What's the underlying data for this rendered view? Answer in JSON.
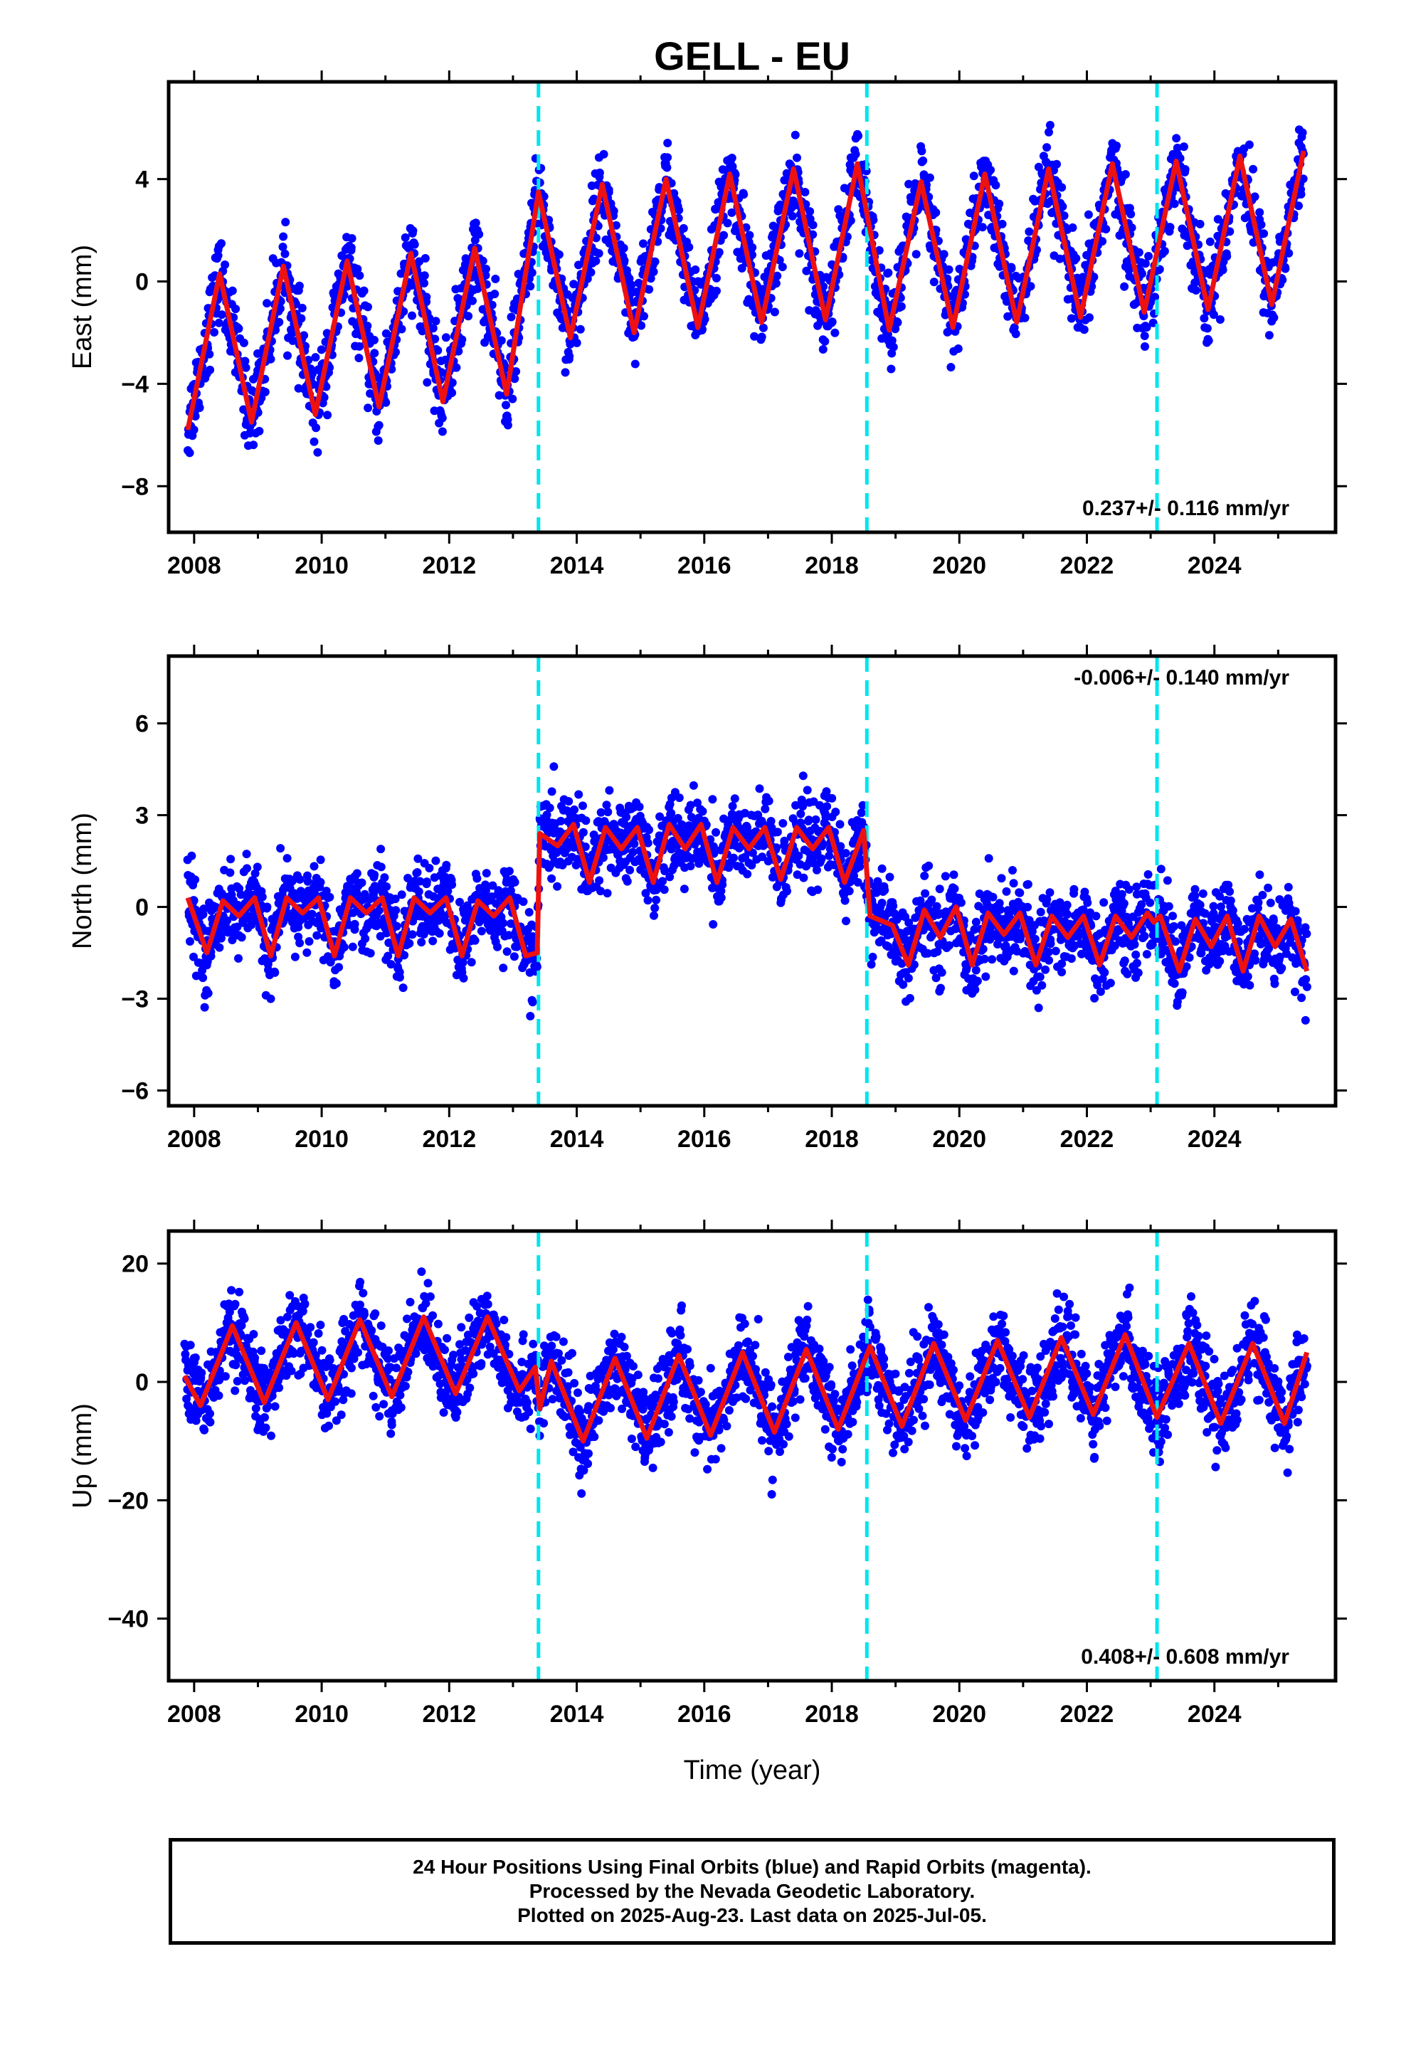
{
  "figure": {
    "title": "GELL - EU",
    "xlabel": "Time (year)",
    "x_ticks": [
      2008,
      2010,
      2012,
      2014,
      2016,
      2018,
      2020,
      2022,
      2024
    ],
    "xlim": [
      2007.6,
      2025.9
    ],
    "breaks": [
      2013.4,
      2018.55,
      2023.1
    ],
    "colors": {
      "data": "#0000ff",
      "model": "#ee1111",
      "break": "#00e5ee"
    }
  },
  "chart_data": [
    {
      "type": "scatter",
      "component": "east",
      "ylabel": "East (mm)",
      "ylim": [
        -9.8,
        7.8
      ],
      "y_ticks": [
        -8,
        -4,
        0,
        4
      ],
      "rate_label": "0.237+/- 0.116 mm/yr",
      "rate_position": "bottom-right",
      "series": [
        {
          "name": "24 Hour Positions (Final Orbits)",
          "x": [
            2007.9,
            2008.4,
            2008.9,
            2009.4,
            2009.9,
            2010.4,
            2010.9,
            2011.4,
            2011.9,
            2012.4,
            2012.9,
            2013.4,
            2013.9,
            2014.4,
            2014.9,
            2015.4,
            2015.9,
            2016.4,
            2016.9,
            2017.4,
            2017.9,
            2018.4,
            2018.9,
            2019.4,
            2019.9,
            2020.4,
            2020.9,
            2021.4,
            2021.9,
            2022.4,
            2022.9,
            2023.4,
            2023.9,
            2024.4,
            2024.9,
            2025.4
          ],
          "values": [
            -5.8,
            0.3,
            -5.5,
            0.6,
            -5.2,
            0.8,
            -4.9,
            1.1,
            -4.7,
            1.3,
            -4.4,
            3.5,
            -2.2,
            3.8,
            -2.0,
            4.0,
            -1.8,
            4.2,
            -1.6,
            4.4,
            -1.5,
            4.6,
            -1.9,
            3.9,
            -1.8,
            4.2,
            -1.6,
            4.4,
            -1.4,
            4.6,
            -1.2,
            4.7,
            -1.1,
            4.9,
            -0.9,
            5.1
          ]
        },
        {
          "name": "Model",
          "x": [
            2007.9,
            2008.4,
            2008.9,
            2009.4,
            2009.9,
            2010.4,
            2010.9,
            2011.4,
            2011.9,
            2012.4,
            2012.9,
            2013.4,
            2013.9,
            2014.4,
            2014.9,
            2015.4,
            2015.9,
            2016.4,
            2016.9,
            2017.4,
            2017.9,
            2018.4,
            2018.9,
            2019.4,
            2019.9,
            2020.4,
            2020.9,
            2021.4,
            2021.9,
            2022.4,
            2022.9,
            2023.4,
            2023.9,
            2024.4,
            2024.9,
            2025.4
          ],
          "values": [
            -5.8,
            0.3,
            -5.5,
            0.6,
            -5.2,
            0.8,
            -4.9,
            1.1,
            -4.7,
            1.3,
            -4.4,
            3.5,
            -2.2,
            3.8,
            -2.0,
            4.0,
            -1.8,
            4.2,
            -1.6,
            4.4,
            -1.5,
            4.6,
            -1.9,
            3.9,
            -1.8,
            4.2,
            -1.6,
            4.4,
            -1.4,
            4.6,
            -1.2,
            4.7,
            -1.1,
            4.9,
            -0.9,
            5.1
          ]
        }
      ]
    },
    {
      "type": "scatter",
      "component": "north",
      "ylabel": "North (mm)",
      "ylim": [
        -6.5,
        8.2
      ],
      "y_ticks": [
        -6,
        -3,
        0,
        3,
        6
      ],
      "rate_label": "-0.006+/- 0.140 mm/yr",
      "rate_position": "top-right",
      "series": [
        {
          "name": "24 Hour Positions (Final Orbits)",
          "x": [
            2007.9,
            2008.2,
            2008.45,
            2008.7,
            2008.95,
            2009.2,
            2009.45,
            2009.7,
            2009.95,
            2010.2,
            2010.45,
            2010.7,
            2010.95,
            2011.2,
            2011.45,
            2011.7,
            2011.95,
            2012.2,
            2012.45,
            2012.7,
            2012.95,
            2013.2,
            2013.38,
            2013.42,
            2013.7,
            2013.95,
            2014.2,
            2014.45,
            2014.7,
            2014.95,
            2015.2,
            2015.45,
            2015.7,
            2015.95,
            2016.2,
            2016.45,
            2016.7,
            2016.95,
            2017.2,
            2017.45,
            2017.7,
            2017.95,
            2018.2,
            2018.5,
            2018.6,
            2018.95,
            2019.2,
            2019.45,
            2019.7,
            2019.95,
            2020.2,
            2020.45,
            2020.7,
            2020.95,
            2021.2,
            2021.45,
            2021.7,
            2021.95,
            2022.2,
            2022.45,
            2022.7,
            2022.95,
            2023.05,
            2023.15,
            2023.45,
            2023.7,
            2023.95,
            2024.2,
            2024.45,
            2024.7,
            2024.95,
            2025.2,
            2025.45
          ],
          "values": [
            0.3,
            -1.5,
            0.2,
            -0.3,
            0.3,
            -1.6,
            0.3,
            -0.2,
            0.3,
            -1.6,
            0.3,
            -0.2,
            0.3,
            -1.6,
            0.3,
            -0.2,
            0.3,
            -1.6,
            0.2,
            -0.3,
            0.3,
            -1.6,
            -1.5,
            2.4,
            2.0,
            2.7,
            0.8,
            2.6,
            1.9,
            2.6,
            0.8,
            2.7,
            1.9,
            2.7,
            0.8,
            2.6,
            1.9,
            2.6,
            0.9,
            2.6,
            1.9,
            2.6,
            0.8,
            2.5,
            -0.3,
            -0.6,
            -1.9,
            -0.1,
            -1.0,
            0.0,
            -1.9,
            -0.2,
            -0.9,
            -0.2,
            -1.9,
            -0.3,
            -1.0,
            -0.3,
            -1.9,
            -0.3,
            -1.0,
            -0.2,
            -0.5,
            -0.3,
            -2.1,
            -0.4,
            -1.3,
            -0.3,
            -2.1,
            -0.3,
            -1.3,
            -0.4,
            -2.1
          ]
        },
        {
          "name": "Model",
          "x": [
            2007.9,
            2008.2,
            2008.45,
            2008.7,
            2008.95,
            2009.2,
            2009.45,
            2009.7,
            2009.95,
            2010.2,
            2010.45,
            2010.7,
            2010.95,
            2011.2,
            2011.45,
            2011.7,
            2011.95,
            2012.2,
            2012.45,
            2012.7,
            2012.95,
            2013.2,
            2013.38,
            2013.42,
            2013.7,
            2013.95,
            2014.2,
            2014.45,
            2014.7,
            2014.95,
            2015.2,
            2015.45,
            2015.7,
            2015.95,
            2016.2,
            2016.45,
            2016.7,
            2016.95,
            2017.2,
            2017.45,
            2017.7,
            2017.95,
            2018.2,
            2018.5,
            2018.6,
            2018.95,
            2019.2,
            2019.45,
            2019.7,
            2019.95,
            2020.2,
            2020.45,
            2020.7,
            2020.95,
            2021.2,
            2021.45,
            2021.7,
            2021.95,
            2022.2,
            2022.45,
            2022.7,
            2022.95,
            2023.05,
            2023.15,
            2023.45,
            2023.7,
            2023.95,
            2024.2,
            2024.45,
            2024.7,
            2024.95,
            2025.2,
            2025.45
          ],
          "values": [
            0.3,
            -1.5,
            0.2,
            -0.3,
            0.3,
            -1.6,
            0.3,
            -0.2,
            0.3,
            -1.6,
            0.3,
            -0.2,
            0.3,
            -1.6,
            0.3,
            -0.2,
            0.3,
            -1.6,
            0.2,
            -0.3,
            0.3,
            -1.6,
            -1.5,
            2.4,
            2.0,
            2.7,
            0.8,
            2.6,
            1.9,
            2.6,
            0.8,
            2.7,
            1.9,
            2.7,
            0.8,
            2.6,
            1.9,
            2.6,
            0.9,
            2.6,
            1.9,
            2.6,
            0.8,
            2.5,
            -0.3,
            -0.6,
            -1.9,
            -0.1,
            -1.0,
            0.0,
            -1.9,
            -0.2,
            -0.9,
            -0.2,
            -1.9,
            -0.3,
            -1.0,
            -0.3,
            -1.9,
            -0.3,
            -1.0,
            -0.2,
            -0.5,
            -0.3,
            -2.1,
            -0.4,
            -1.3,
            -0.3,
            -2.1,
            -0.3,
            -1.3,
            -0.4,
            -2.1
          ]
        }
      ]
    },
    {
      "type": "scatter",
      "component": "up",
      "ylabel": "Up (mm)",
      "ylim": [
        -50.5,
        25.5
      ],
      "y_ticks": [
        -40,
        -20,
        0,
        20
      ],
      "rate_label": "0.408+/- 0.608 mm/yr",
      "rate_position": "bottom-right",
      "series": [
        {
          "name": "24 Hour Positions (Final Orbits)",
          "x": [
            2007.85,
            2008.1,
            2008.6,
            2009.1,
            2009.6,
            2010.1,
            2010.6,
            2011.1,
            2011.6,
            2012.1,
            2012.6,
            2013.1,
            2013.35,
            2013.42,
            2013.6,
            2014.1,
            2014.6,
            2015.1,
            2015.6,
            2016.1,
            2016.6,
            2017.1,
            2017.6,
            2018.1,
            2018.6,
            2019.1,
            2019.6,
            2020.1,
            2020.6,
            2021.1,
            2021.6,
            2022.1,
            2022.6,
            2023.1,
            2023.6,
            2024.1,
            2024.6,
            2025.1,
            2025.45
          ],
          "values": [
            1.0,
            -4.0,
            9.5,
            -3.5,
            10.0,
            -3.0,
            10.5,
            -2.5,
            11.0,
            -2.0,
            11.0,
            -1.5,
            2.5,
            -4.5,
            3.5,
            -10.0,
            4.0,
            -9.5,
            4.5,
            -9.0,
            5.0,
            -8.5,
            5.5,
            -8.0,
            6.0,
            -7.5,
            6.5,
            -6.5,
            7.0,
            -6.0,
            7.5,
            -5.5,
            8.0,
            -6.0,
            6.5,
            -7.0,
            6.5,
            -7.0,
            5.0
          ]
        },
        {
          "name": "Model",
          "x": [
            2007.85,
            2008.1,
            2008.6,
            2009.1,
            2009.6,
            2010.1,
            2010.6,
            2011.1,
            2011.6,
            2012.1,
            2012.6,
            2013.1,
            2013.35,
            2013.42,
            2013.6,
            2014.1,
            2014.6,
            2015.1,
            2015.6,
            2016.1,
            2016.6,
            2017.1,
            2017.6,
            2018.1,
            2018.6,
            2019.1,
            2019.6,
            2020.1,
            2020.6,
            2021.1,
            2021.6,
            2022.1,
            2022.6,
            2023.1,
            2023.6,
            2024.1,
            2024.6,
            2025.1,
            2025.45
          ],
          "values": [
            1.0,
            -4.0,
            9.5,
            -3.5,
            10.0,
            -3.0,
            10.5,
            -2.5,
            11.0,
            -2.0,
            11.0,
            -1.5,
            2.5,
            -4.5,
            3.5,
            -10.0,
            4.0,
            -9.5,
            4.5,
            -9.0,
            5.0,
            -8.5,
            5.5,
            -8.0,
            6.0,
            -7.5,
            6.5,
            -6.5,
            7.0,
            -6.0,
            7.5,
            -5.5,
            8.0,
            -6.0,
            6.5,
            -7.0,
            6.5,
            -7.0,
            5.0
          ]
        }
      ]
    }
  ],
  "caption": {
    "lines": [
      "24 Hour Positions Using Final Orbits (blue) and Rapid Orbits (magenta).",
      "Processed by the Nevada Geodetic Laboratory.",
      "Plotted on 2025-Aug-23. Last data on 2025-Jul-05."
    ]
  }
}
